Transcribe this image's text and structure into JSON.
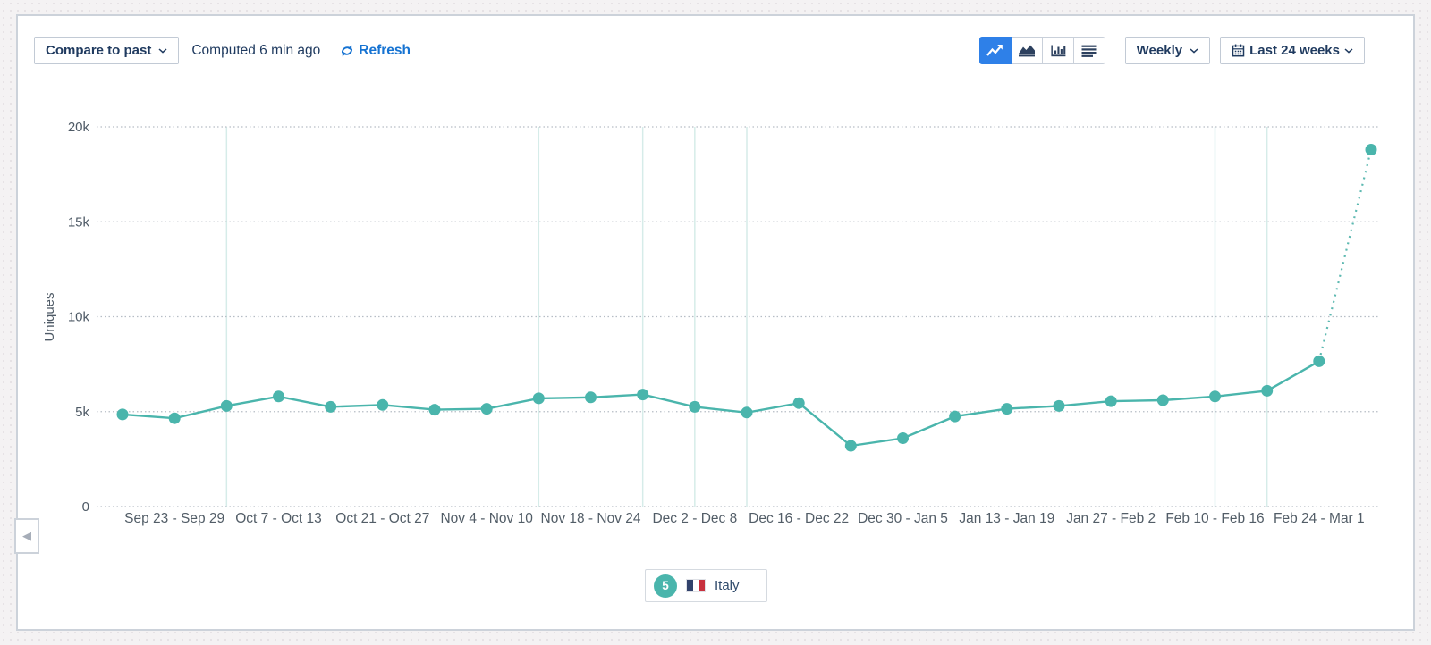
{
  "toolbar": {
    "compare_label": "Compare to past",
    "computed_text": "Computed 6 min ago",
    "refresh_label": "Refresh",
    "chart_type_buttons": [
      {
        "name": "line-chart",
        "active": true
      },
      {
        "name": "area-chart",
        "active": false
      },
      {
        "name": "bar-chart",
        "active": false
      },
      {
        "name": "table-view",
        "active": false
      }
    ],
    "interval_label": "Weekly",
    "range_label": "Last 24 weeks"
  },
  "legend": {
    "badge": "5",
    "label": "Italy",
    "flag_colors": [
      "#31426b",
      "#ffffff",
      "#c8313e"
    ]
  },
  "colors": {
    "accent_blue": "#2e80e8",
    "link_blue": "#1673d2",
    "navy_text": "#1f3a5f",
    "series_teal": "#4ab5ac"
  },
  "chart_data": {
    "type": "line",
    "title": "",
    "xlabel": "",
    "ylabel": "Uniques",
    "ylim": [
      0,
      20000
    ],
    "grid": true,
    "legend_position": "bottom",
    "interval": "weekly",
    "y_ticks": [
      {
        "label": "20k",
        "value": 20000
      },
      {
        "label": "15k",
        "value": 15000
      },
      {
        "label": "10k",
        "value": 10000
      },
      {
        "label": "5k",
        "value": 5000
      },
      {
        "label": "0",
        "value": 0
      }
    ],
    "x_ticks": [
      {
        "label": "Sep 23 - Sep 29",
        "point_index": 2
      },
      {
        "label": "Oct 7 - Oct 13",
        "point_index": 4
      },
      {
        "label": "Oct 21 - Oct 27",
        "point_index": 6
      },
      {
        "label": "Nov 4 - Nov 10",
        "point_index": 8
      },
      {
        "label": "Nov 18 - Nov 24",
        "point_index": 10
      },
      {
        "label": "Dec 2 - Dec 8",
        "point_index": 12
      },
      {
        "label": "Dec 16 - Dec 22",
        "point_index": 14
      },
      {
        "label": "Dec 30 - Jan 5",
        "point_index": 16
      },
      {
        "label": "Jan 13 - Jan 19",
        "point_index": 18
      },
      {
        "label": "Jan 27 - Feb 2",
        "point_index": 20
      },
      {
        "label": "Feb 10 - Feb 16",
        "point_index": 22
      },
      {
        "label": "Feb 24 - Mar 1",
        "point_index": 24
      }
    ],
    "series": [
      {
        "name": "Italy",
        "color": "#4ab5ac",
        "values": [
          4850,
          4650,
          5300,
          5800,
          5250,
          5350,
          5100,
          5150,
          5700,
          5750,
          5900,
          5250,
          4950,
          5450,
          3200,
          3600,
          4750,
          5150,
          5300,
          5550,
          5600,
          5800,
          6100,
          7650,
          18800
        ]
      }
    ],
    "last_segment_dotted": true,
    "projection_color": "#5db9b1",
    "marker_week_indices": [
      3,
      9,
      11,
      12,
      13,
      22,
      23
    ],
    "marker_line_color": "#d6ece9",
    "gridline_color": "#b6bdc5",
    "tick_label_color": "#525d67"
  }
}
